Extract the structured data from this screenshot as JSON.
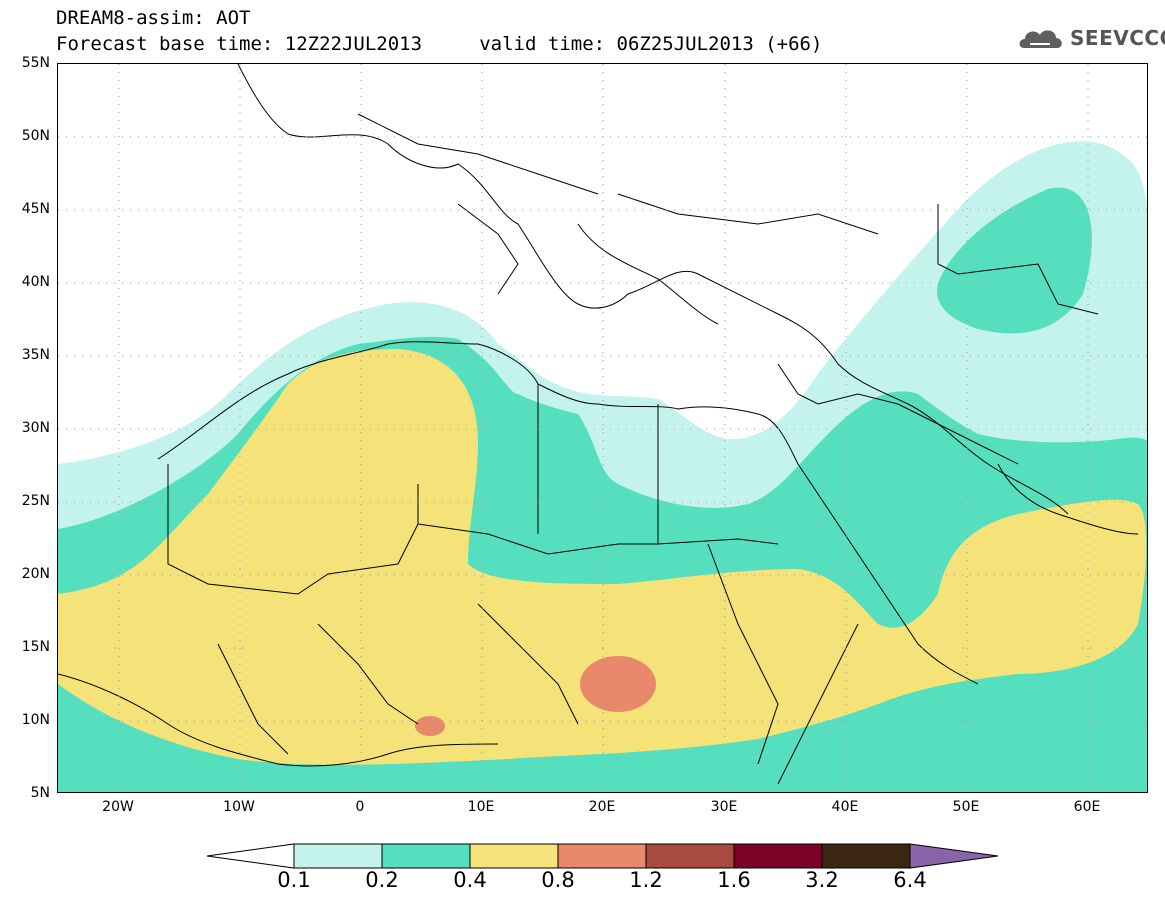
{
  "title": {
    "line1": "DREAM8-assim: AOT",
    "line2": "Forecast base time: 12Z22JUL2013     valid time: 06Z25JUL2013 (+66)"
  },
  "logo": {
    "text": "SEEVCCC",
    "icon": "cloud-icon"
  },
  "map": {
    "lat_labels": [
      "55N",
      "50N",
      "45N",
      "40N",
      "35N",
      "30N",
      "25N",
      "20N",
      "15N",
      "10N",
      "5N"
    ],
    "lon_labels": [
      "20W",
      "10W",
      "0",
      "10E",
      "20E",
      "30E",
      "40E",
      "50E",
      "60E"
    ],
    "lat_range": [
      5,
      55
    ],
    "lon_range": [
      -25,
      65
    ]
  },
  "legend": {
    "levels": [
      "0.1",
      "0.2",
      "0.4",
      "0.8",
      "1.2",
      "1.6",
      "3.2",
      "6.4"
    ],
    "colors": [
      "#c4f2ec",
      "#55dfbe",
      "#f5e37a",
      "#e8896b",
      "#a94a3e",
      "#7a0225",
      "#3b2612",
      "#8a64a9"
    ]
  }
}
